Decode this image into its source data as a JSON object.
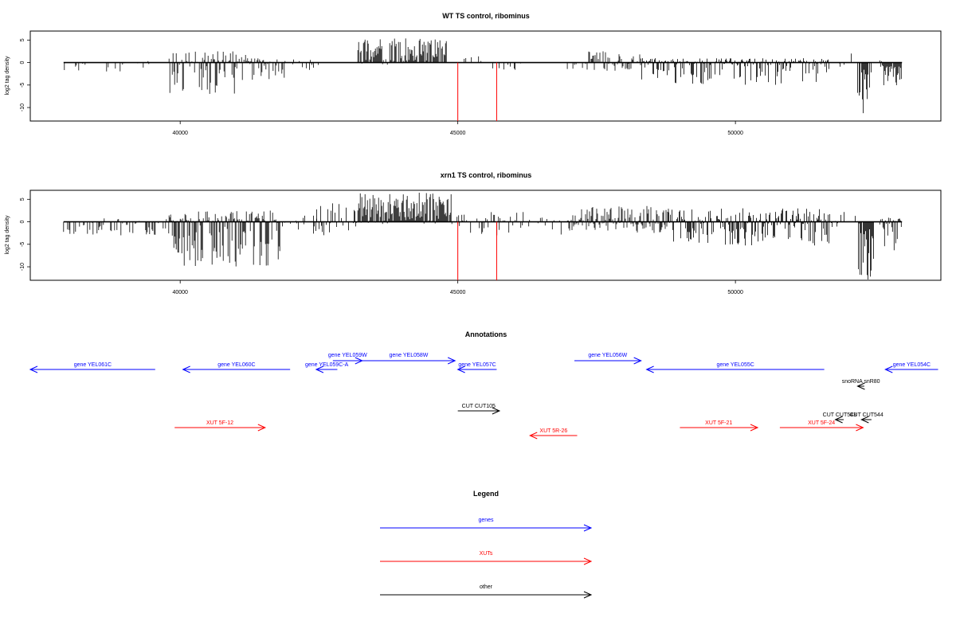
{
  "chart_data": [
    {
      "type": "bar",
      "title": "WT TS control, ribominus",
      "ylabel": "log2 tag density",
      "xlabel": "",
      "xlim": [
        37300,
        53700
      ],
      "ylim": [
        -13,
        7
      ],
      "xticks": [
        40000,
        45000,
        50000
      ],
      "yticks": [
        5,
        0,
        -5,
        -10
      ],
      "segments": [
        {
          "start": 37900,
          "end": 39500,
          "max": 0.4,
          "min": -2.5,
          "density": 0.18
        },
        {
          "start": 39800,
          "end": 41200,
          "max": 2.5,
          "min": -7.0,
          "density": 0.8
        },
        {
          "start": 41200,
          "end": 41900,
          "max": 1.0,
          "min": -4.0,
          "density": 0.7
        },
        {
          "start": 41900,
          "end": 42500,
          "max": 1.0,
          "min": -2.0,
          "density": 0.15
        },
        {
          "start": 43200,
          "end": 44800,
          "max": 5.5,
          "min": -0.5,
          "density": 0.9
        },
        {
          "start": 44800,
          "end": 45500,
          "max": 1.5,
          "min": -1.5,
          "density": 0.12
        },
        {
          "start": 45600,
          "end": 46200,
          "max": 0.5,
          "min": -2.5,
          "density": 0.12
        },
        {
          "start": 46900,
          "end": 47300,
          "max": 0.5,
          "min": -1.5,
          "density": 0.2
        },
        {
          "start": 47300,
          "end": 48300,
          "max": 2.5,
          "min": -2.0,
          "density": 0.7
        },
        {
          "start": 48300,
          "end": 51700,
          "max": 1.0,
          "min": -5.0,
          "density": 0.85
        },
        {
          "start": 51800,
          "end": 52100,
          "max": 3.0,
          "min": -1.0,
          "density": 0.2
        },
        {
          "start": 52200,
          "end": 52500,
          "max": 0.0,
          "min": -12.0,
          "density": 1.0
        },
        {
          "start": 52600,
          "end": 53000,
          "max": 0.5,
          "min": -5.5,
          "density": 1.0
        }
      ],
      "highlight_x": [
        45000,
        45700
      ],
      "highlight_y": -13,
      "highlight_color": "#ff0000"
    },
    {
      "type": "bar",
      "title": "xrn1 TS control, ribominus",
      "ylabel": "log2 tag density",
      "xlabel": "",
      "xlim": [
        37300,
        53700
      ],
      "ylim": [
        -13,
        7
      ],
      "xticks": [
        40000,
        45000,
        50000
      ],
      "yticks": [
        5,
        0,
        -5,
        -10
      ],
      "segments": [
        {
          "start": 37900,
          "end": 39800,
          "max": 0.8,
          "min": -3.0,
          "density": 0.5
        },
        {
          "start": 39800,
          "end": 41800,
          "max": 2.5,
          "min": -10.0,
          "density": 1.0
        },
        {
          "start": 41800,
          "end": 42500,
          "max": 1.5,
          "min": -2.0,
          "density": 0.25
        },
        {
          "start": 42400,
          "end": 43200,
          "max": 4.5,
          "min": -3.0,
          "density": 0.5
        },
        {
          "start": 43200,
          "end": 44900,
          "max": 6.5,
          "min": -0.5,
          "density": 1.0
        },
        {
          "start": 44900,
          "end": 46300,
          "max": 2.5,
          "min": -3.0,
          "density": 0.4
        },
        {
          "start": 46300,
          "end": 47000,
          "max": 1.0,
          "min": -3.0,
          "density": 0.25
        },
        {
          "start": 47000,
          "end": 48800,
          "max": 3.5,
          "min": -2.5,
          "density": 0.95
        },
        {
          "start": 48800,
          "end": 51700,
          "max": 3.0,
          "min": -5.5,
          "density": 0.95
        },
        {
          "start": 51700,
          "end": 52200,
          "max": 2.5,
          "min": -2.0,
          "density": 0.3
        },
        {
          "start": 52200,
          "end": 52500,
          "max": 0.0,
          "min": -13.0,
          "density": 1.0
        },
        {
          "start": 52600,
          "end": 53000,
          "max": 1.0,
          "min": -6.5,
          "density": 1.0
        }
      ],
      "highlight_x": [
        45000,
        45700
      ],
      "highlight_y": -13,
      "highlight_color": "#ff0000"
    }
  ],
  "annotations": {
    "title": "Annotations",
    "features": [
      {
        "label": "gene YEL061C",
        "start": 37300,
        "end": 39550,
        "strand": "-",
        "row": 2,
        "color": "#0000ff"
      },
      {
        "label": "gene YEL060C",
        "start": 40050,
        "end": 41980,
        "strand": "-",
        "row": 2,
        "color": "#0000ff"
      },
      {
        "label": "gene YEL059W",
        "start": 42750,
        "end": 43280,
        "strand": "+",
        "row": 0,
        "color": "#0000ff"
      },
      {
        "label": "gene YEL059C-A",
        "start": 42450,
        "end": 42830,
        "strand": "-",
        "row": 2,
        "color": "#0000ff"
      },
      {
        "label": "gene YEL058W",
        "start": 43280,
        "end": 44950,
        "strand": "+",
        "row": 1,
        "color": "#0000ff"
      },
      {
        "label": "gene YEL057C",
        "start": 45000,
        "end": 45700,
        "strand": "-",
        "row": 2,
        "color": "#0000ff"
      },
      {
        "label": "gene YEL056W",
        "start": 47100,
        "end": 48300,
        "strand": "+",
        "row": 1,
        "color": "#0000ff"
      },
      {
        "label": "gene YEL055C",
        "start": 48400,
        "end": 51600,
        "strand": "-",
        "row": 2,
        "color": "#0000ff"
      },
      {
        "label": "gene YEL054C",
        "start": 52700,
        "end": 53650,
        "strand": "-",
        "row": 2,
        "color": "#0000ff"
      },
      {
        "label": "snoRNA snR80",
        "start": 52200,
        "end": 52320,
        "strand": "-",
        "row": 3,
        "color": "#000000"
      },
      {
        "label": "CUT CUT105",
        "start": 45000,
        "end": 45750,
        "strand": "+",
        "row": 4,
        "color": "#000000"
      },
      {
        "label": "CUT CUT543",
        "start": 51800,
        "end": 51950,
        "strand": "-",
        "row": 5,
        "color": "#000000"
      },
      {
        "label": "CUT CUT544",
        "start": 52270,
        "end": 52450,
        "strand": "-",
        "row": 5,
        "color": "#000000"
      },
      {
        "label": "XUT 5F-12",
        "start": 39900,
        "end": 41530,
        "strand": "+",
        "row": 6,
        "color": "#ff0000"
      },
      {
        "label": "XUT 5R-26",
        "start": 46300,
        "end": 47150,
        "strand": "-",
        "row": 7,
        "color": "#ff0000"
      },
      {
        "label": "XUT 5F-21",
        "start": 49000,
        "end": 50400,
        "strand": "+",
        "row": 6,
        "color": "#ff0000"
      },
      {
        "label": "XUT 5F-24",
        "start": 50800,
        "end": 52300,
        "strand": "+",
        "row": 6,
        "color": "#ff0000"
      }
    ]
  },
  "legend": {
    "title": "Legend",
    "items": [
      {
        "label": "genes",
        "color": "#0000ff"
      },
      {
        "label": "XUTs",
        "color": "#ff0000"
      },
      {
        "label": "other",
        "color": "#000000"
      }
    ]
  }
}
